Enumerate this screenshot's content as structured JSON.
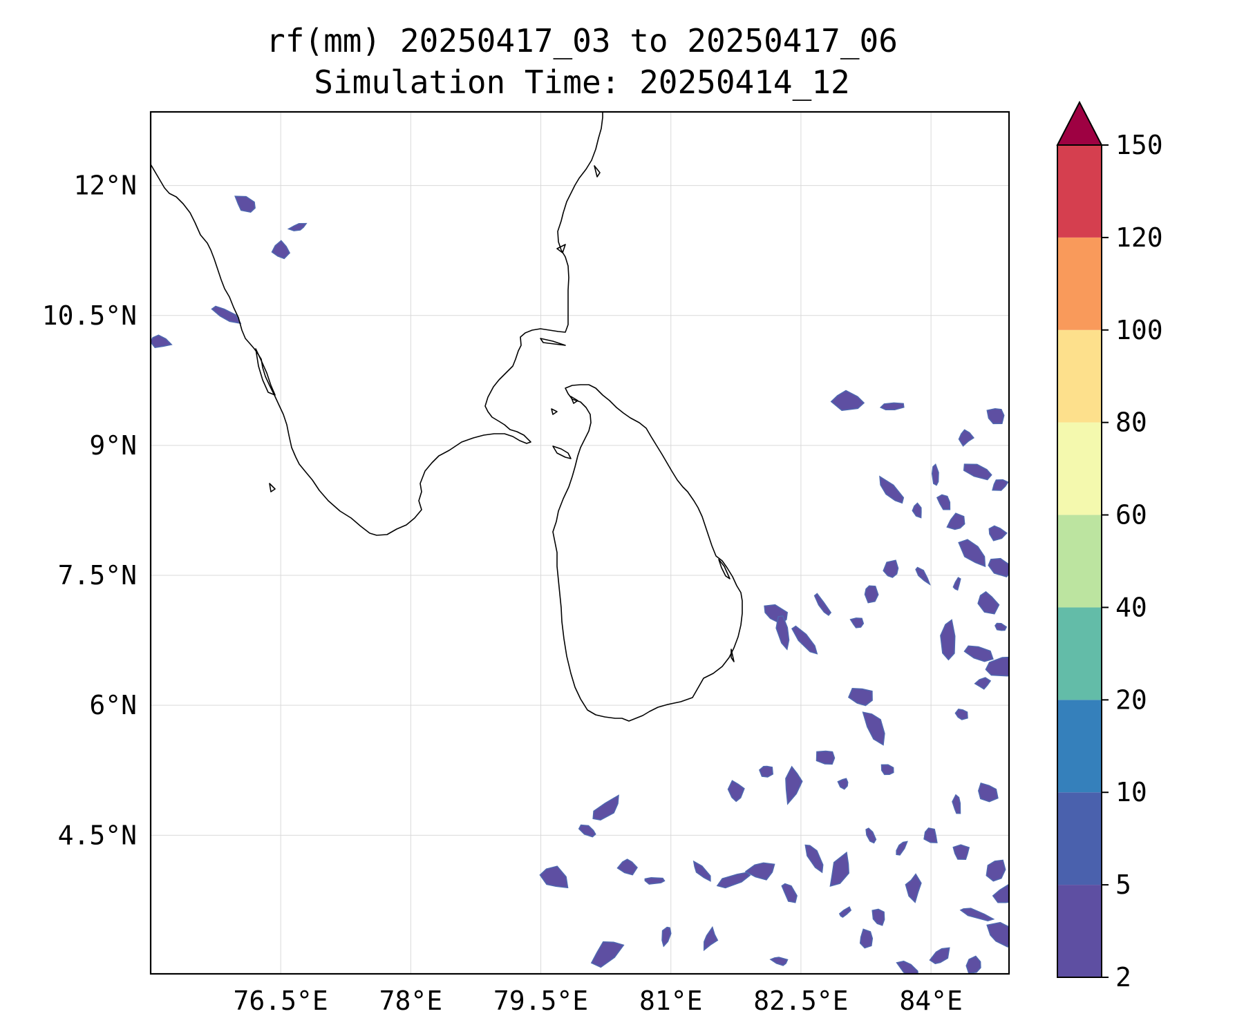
{
  "title": {
    "line1": "rf(mm) 20250417_03 to 20250417_06",
    "line2": "Simulation Time: 20250414_12"
  },
  "chart_data": {
    "type": "heatmap",
    "variable": "rf(mm)",
    "x_axis": {
      "range": [
        75.0,
        84.9
      ],
      "ticks": [
        76.5,
        78.0,
        79.5,
        81.0,
        82.5,
        84.0
      ],
      "tick_labels": [
        "76.5°E",
        "78°E",
        "79.5°E",
        "81°E",
        "82.5°E",
        "84°E"
      ]
    },
    "y_axis": {
      "range": [
        2.9,
        12.85
      ],
      "ticks": [
        4.5,
        6.0,
        7.5,
        9.0,
        10.5,
        12.0
      ],
      "tick_labels": [
        "4.5°N",
        "6°N",
        "7.5°N",
        "9°N",
        "10.5°N",
        "12°N"
      ]
    },
    "colorbar": {
      "levels": [
        2,
        5,
        10,
        20,
        40,
        60,
        80,
        100,
        120,
        150
      ],
      "tick_labels": [
        "2",
        "5",
        "10",
        "20",
        "40",
        "60",
        "80",
        "100",
        "120",
        "150"
      ],
      "colors": [
        "#5e4fa2",
        "#4a61ad",
        "#3580bb",
        "#63bca8",
        "#bce4a0",
        "#f4f9ae",
        "#fde08c",
        "#f99a5b",
        "#d53f4f"
      ],
      "extend_color": "#9e0142",
      "extend": "max"
    },
    "rain_patches_2_to_5mm": [
      [
        76.1,
        11.78
      ],
      [
        76.5,
        11.25
      ],
      [
        76.7,
        11.52
      ],
      [
        75.85,
        10.52
      ],
      [
        75.1,
        10.2
      ],
      [
        82.2,
        7.05
      ],
      [
        82.3,
        6.85
      ],
      [
        82.55,
        6.75
      ],
      [
        82.75,
        7.15
      ],
      [
        83.15,
        6.95
      ],
      [
        83.3,
        7.3
      ],
      [
        83.55,
        7.55
      ],
      [
        83.9,
        7.5
      ],
      [
        84.3,
        7.4
      ],
      [
        84.65,
        7.2
      ],
      [
        84.8,
        6.9
      ],
      [
        84.55,
        6.6
      ],
      [
        84.2,
        6.75
      ],
      [
        83.55,
        9.45
      ],
      [
        83.05,
        9.52
      ],
      [
        84.4,
        9.1
      ],
      [
        84.75,
        9.35
      ],
      [
        84.55,
        8.7
      ],
      [
        84.8,
        8.55
      ],
      [
        84.15,
        8.35
      ],
      [
        84.3,
        8.1
      ],
      [
        84.75,
        8.0
      ],
      [
        84.5,
        7.75
      ],
      [
        84.8,
        7.6
      ],
      [
        83.85,
        8.25
      ],
      [
        83.55,
        8.45
      ],
      [
        84.05,
        8.65
      ],
      [
        81.75,
        5.0
      ],
      [
        82.1,
        5.25
      ],
      [
        82.4,
        5.1
      ],
      [
        82.8,
        5.4
      ],
      [
        83.0,
        5.1
      ],
      [
        83.5,
        5.25
      ],
      [
        83.35,
        5.75
      ],
      [
        83.2,
        6.1
      ],
      [
        84.35,
        5.9
      ],
      [
        84.6,
        6.25
      ],
      [
        84.8,
        6.45
      ],
      [
        84.65,
        5.0
      ],
      [
        84.3,
        4.85
      ],
      [
        80.5,
        4.15
      ],
      [
        80.8,
        3.98
      ],
      [
        81.35,
        4.08
      ],
      [
        81.75,
        4.0
      ],
      [
        82.05,
        4.1
      ],
      [
        82.35,
        3.85
      ],
      [
        82.65,
        4.25
      ],
      [
        82.95,
        4.08
      ],
      [
        83.3,
        4.5
      ],
      [
        83.65,
        4.35
      ],
      [
        84.0,
        4.5
      ],
      [
        84.35,
        4.3
      ],
      [
        84.75,
        4.1
      ],
      [
        84.5,
        3.6
      ],
      [
        84.8,
        3.35
      ],
      [
        84.1,
        3.1
      ],
      [
        84.5,
        3.0
      ],
      [
        82.25,
        3.05
      ],
      [
        81.45,
        3.3
      ],
      [
        80.95,
        3.35
      ],
      [
        80.25,
        3.15
      ],
      [
        79.65,
        4.0
      ],
      [
        80.05,
        4.55
      ],
      [
        80.25,
        4.8
      ],
      [
        83.4,
        3.55
      ],
      [
        83.8,
        3.9
      ],
      [
        83.0,
        3.6
      ],
      [
        83.25,
        3.3
      ],
      [
        83.75,
        2.95
      ],
      [
        84.85,
        3.8
      ]
    ]
  }
}
